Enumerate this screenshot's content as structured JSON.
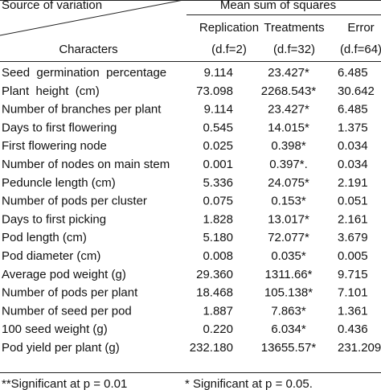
{
  "header": {
    "source": "Source of variation",
    "mean": "Mean sum of squares",
    "characters": "Characters",
    "columns": [
      {
        "name": "Replication",
        "df": "(d.f=2)"
      },
      {
        "name": "Treatments",
        "df": "(d.f=32)"
      },
      {
        "name": "Error",
        "df": "(d.f=64)"
      }
    ]
  },
  "table": {
    "rows": [
      [
        "Seed  germination  percentage",
        "9.114",
        "23.427*",
        "6.485"
      ],
      [
        "Plant  height  (cm)",
        "73.098",
        "2268.543*",
        "30.642"
      ],
      [
        "Number of branches per plant",
        "9.114",
        "23.427*",
        "6.485"
      ],
      [
        "Days to first flowering",
        "0.545",
        "14.015*",
        "1.375"
      ],
      [
        "First flowering node",
        "0.025",
        "0.398*",
        "0.034"
      ],
      [
        "Number of nodes on main stem",
        "0.001",
        "0.397*.",
        "0.034"
      ],
      [
        "Peduncle length (cm)",
        "5.336",
        "24.075*",
        "2.191"
      ],
      [
        "Number of pods per cluster",
        "0.075",
        "0.153*",
        "0.051"
      ],
      [
        "Days to first picking",
        "1.828",
        "13.017*",
        "2.161"
      ],
      [
        "Pod length (cm)",
        "5.180",
        "72.077*",
        "3.679"
      ],
      [
        "Pod diameter (cm)",
        "0.008",
        "0.035*",
        "0.005"
      ],
      [
        "Average pod weight (g)",
        "29.360",
        "1311.66*",
        "9.715"
      ],
      [
        "Number of pods per plant",
        "18.468",
        "105.138*",
        "7.101"
      ],
      [
        "Number of seed per pod",
        "1.887",
        "7.863*",
        "1.361"
      ],
      [
        "100 seed weight (g)",
        "0.220",
        "6.034*",
        "0.436"
      ],
      [
        "Pod yield per plant (g)",
        "232.180",
        "13655.57*",
        "231.209"
      ]
    ]
  },
  "footnote": [
    "**Significant at p = 0.01",
    "* Significant at p = 0.05."
  ]
}
